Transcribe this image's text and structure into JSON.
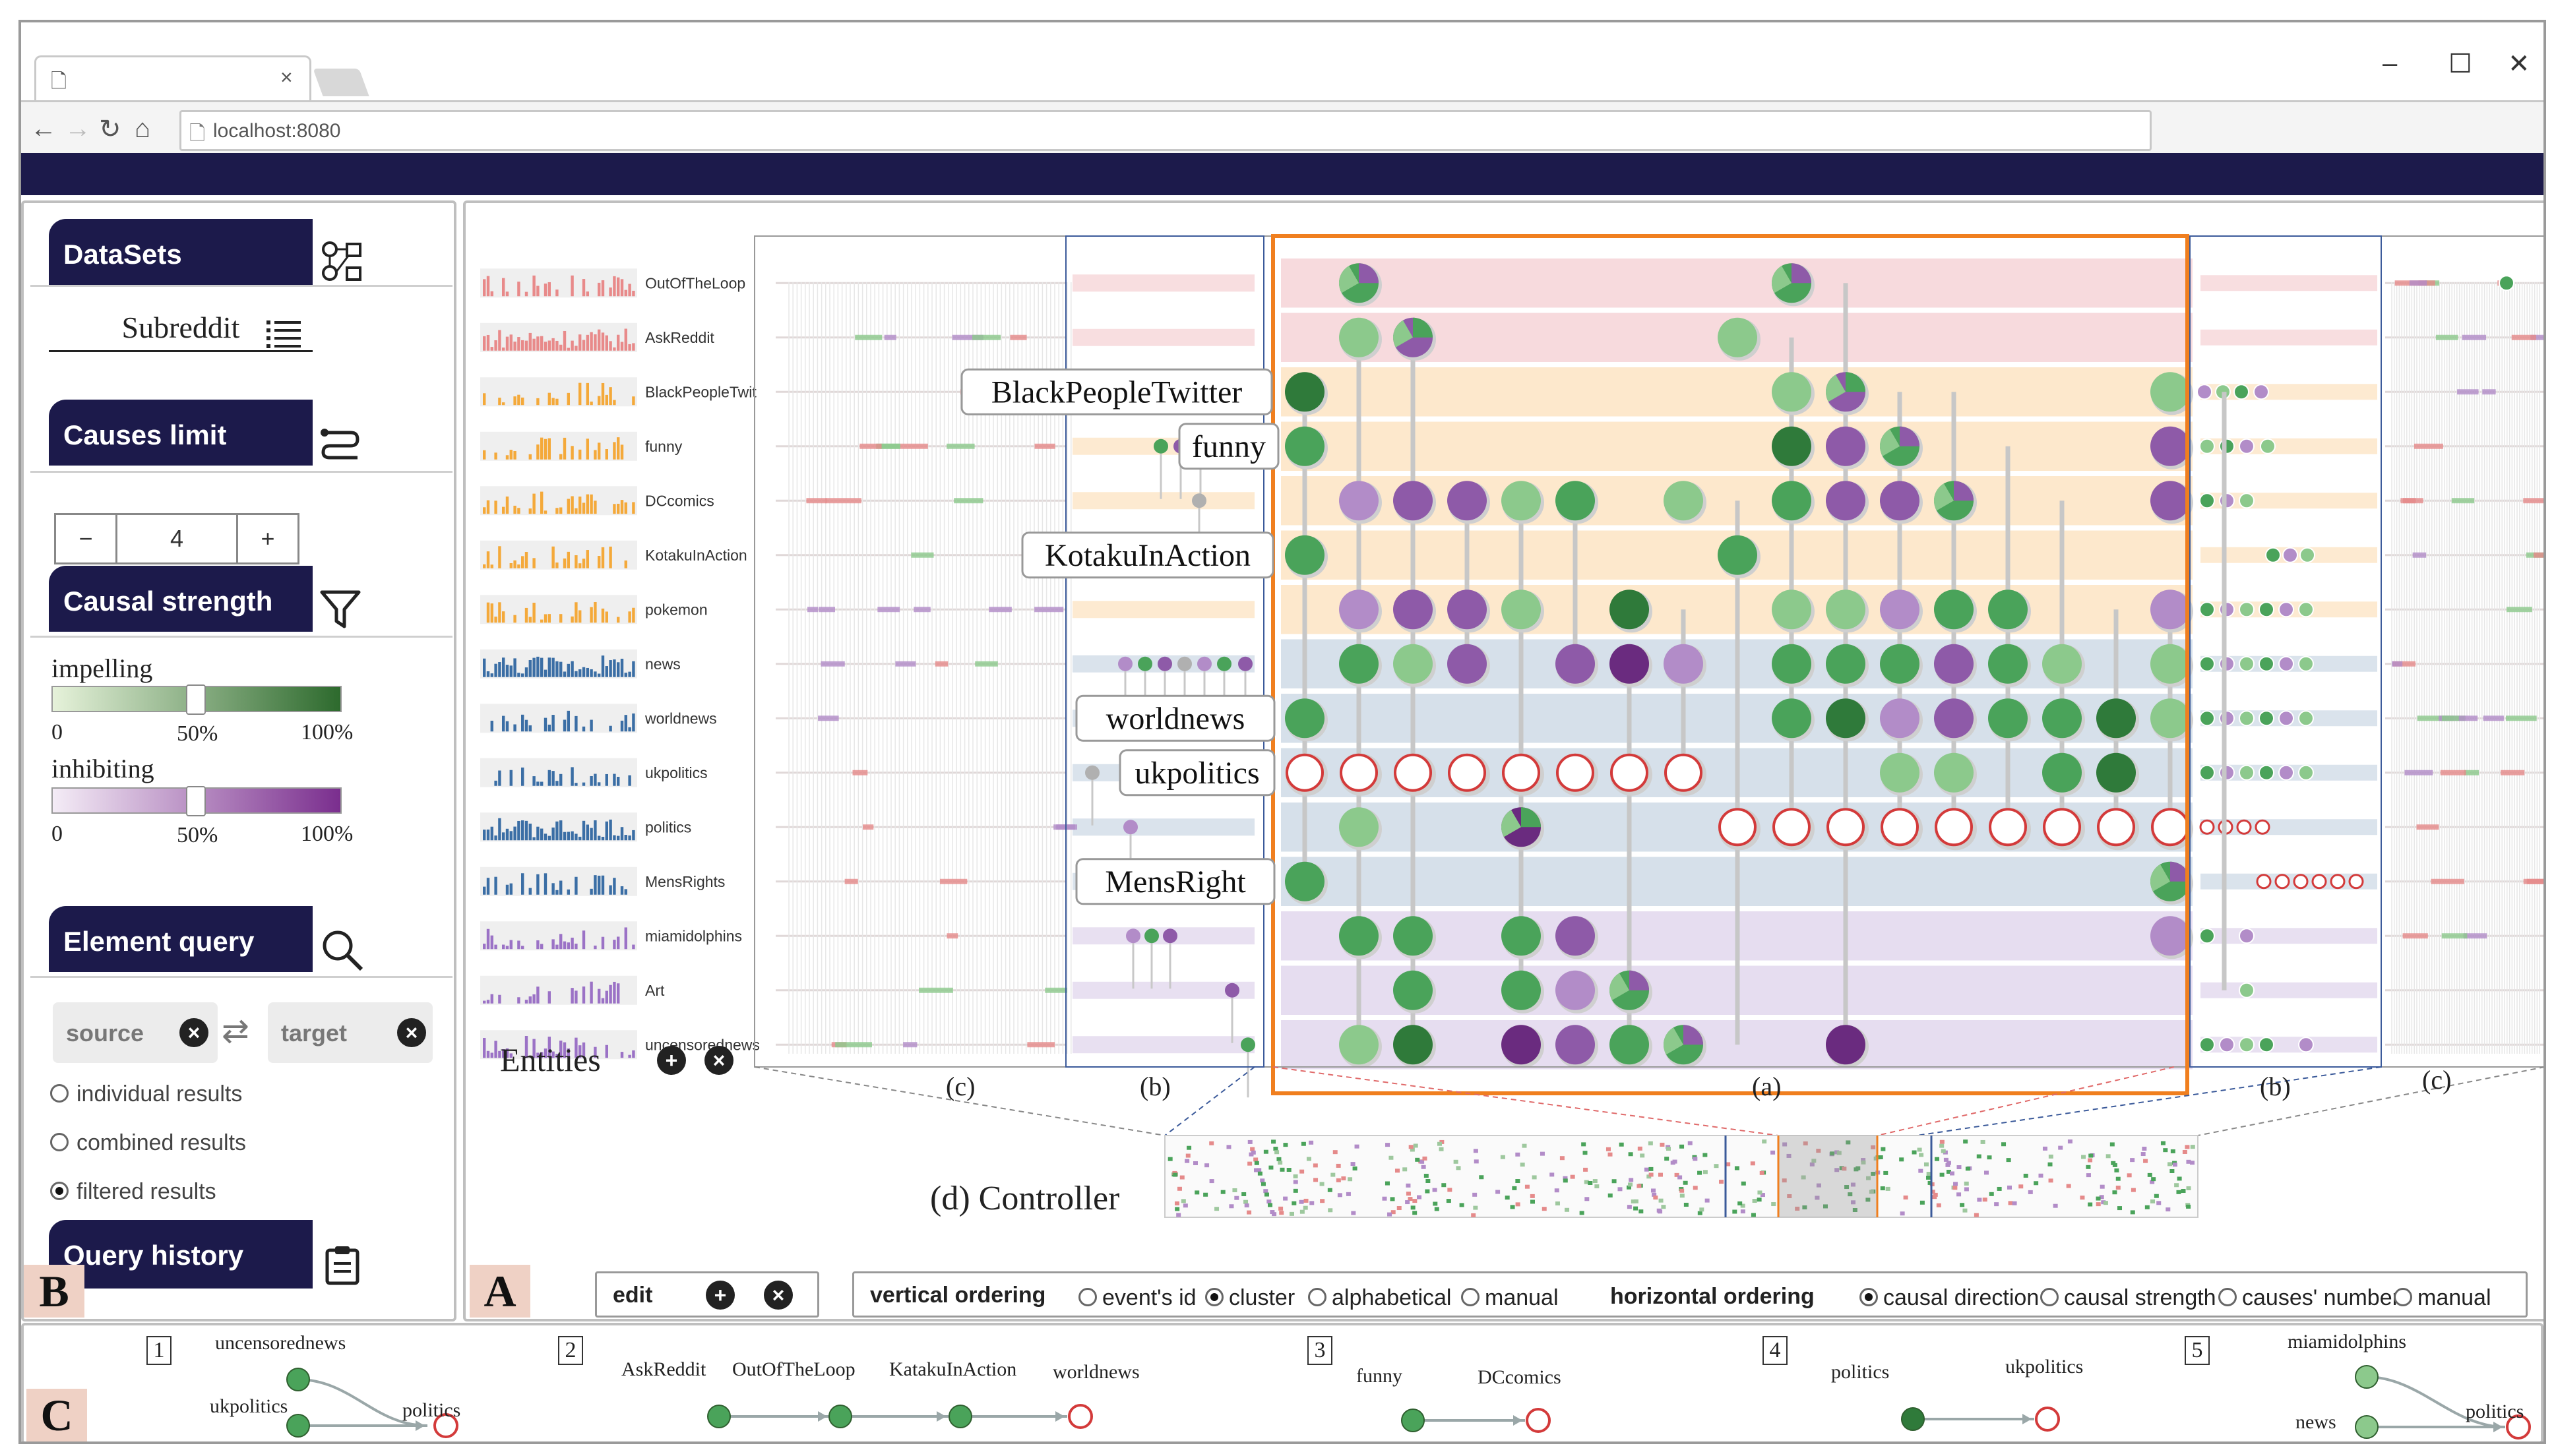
{
  "browser": {
    "url": "localhost:8080",
    "window_buttons": [
      "–",
      "☐",
      "✕"
    ],
    "nav_icons": [
      "←",
      "→",
      "↻",
      "⌂"
    ]
  },
  "panel_badges": {
    "left": "B",
    "main": "A",
    "bottom": "C"
  },
  "left_panel": {
    "datasets": {
      "title": "DataSets",
      "icon": "shapes-icon",
      "value": "Subreddit"
    },
    "causes_limit": {
      "title": "Causes limit",
      "icon": "route-icon",
      "minus": "−",
      "value": "4",
      "plus": "+"
    },
    "causal_strength": {
      "title": "Causal strength",
      "icon": "funnel-icon",
      "impelling_label": "impelling",
      "inhibiting_label": "inhibiting",
      "ticks": [
        "0",
        "50%",
        "100%"
      ],
      "impelling_threshold": 0.5,
      "inhibiting_threshold": 0.5,
      "colors": {
        "impel_start": "#e6f2da",
        "impel_end": "#2d6a2d",
        "inhib_start": "#f4ecf6",
        "inhib_end": "#7a2e8e"
      }
    },
    "element_query": {
      "title": "Element query",
      "icon": "search-icon",
      "source_placeholder": "source",
      "target_placeholder": "target",
      "options": [
        {
          "label": "individual results",
          "selected": false
        },
        {
          "label": "combined results",
          "selected": false
        },
        {
          "label": "filtered results",
          "selected": true
        }
      ]
    },
    "query_history": {
      "title": "Query history",
      "icon": "clipboard-icon"
    }
  },
  "main_panel": {
    "entities": [
      {
        "name": "OutOfTheLoop",
        "color": "#e88a8a"
      },
      {
        "name": "AskReddit",
        "color": "#e88a8a"
      },
      {
        "name": "BlackPeopleTwit",
        "color": "#f4a93a"
      },
      {
        "name": "funny",
        "color": "#f4a93a"
      },
      {
        "name": "DCcomics",
        "color": "#f4a93a"
      },
      {
        "name": "KotakuInAction",
        "color": "#f4a93a"
      },
      {
        "name": "pokemon",
        "color": "#f4a93a"
      },
      {
        "name": "news",
        "color": "#3b6ea5"
      },
      {
        "name": "worldnews",
        "color": "#3b6ea5"
      },
      {
        "name": "ukpolitics",
        "color": "#3b6ea5"
      },
      {
        "name": "politics",
        "color": "#3b6ea5"
      },
      {
        "name": "MensRights",
        "color": "#3b6ea5"
      },
      {
        "name": "miamidolphins",
        "color": "#9b72c6"
      },
      {
        "name": "Art",
        "color": "#9b72c6"
      },
      {
        "name": "uncensorednews",
        "color": "#9b72c6"
      }
    ],
    "entities_label": "Entities",
    "band_colors": [
      "#f7dadd",
      "#f7dadd",
      "#fde8cc",
      "#fde8cc",
      "#fde8cc",
      "#fde8cc",
      "#fde8cc",
      "#d6e0ea",
      "#d6e0ea",
      "#d6e0ea",
      "#d6e0ea",
      "#d6e0ea",
      "#e6ddf0",
      "#e6ddf0",
      "#e6ddf0"
    ],
    "callouts": [
      "BlackPeopleTwitter",
      "funny",
      "KotakuInAction",
      "worldnews",
      "ukpolitics",
      "MensRight"
    ],
    "region_labels": {
      "c_left": "(c)",
      "b_left": "(b)",
      "a": "(a)",
      "b_right": "(b)",
      "c_right": "(c)"
    },
    "controller_label": "(d) Controller",
    "toolbar": {
      "edit_label": "edit",
      "vertical_label": "vertical ordering",
      "vertical_options": [
        {
          "label": "event's id",
          "selected": false
        },
        {
          "label": "cluster",
          "selected": true
        },
        {
          "label": "alphabetical",
          "selected": false
        },
        {
          "label": "manual",
          "selected": false
        }
      ],
      "horizontal_label": "horizontal ordering",
      "horizontal_options": [
        {
          "label": "causal direction",
          "selected": true
        },
        {
          "label": "causal strength",
          "selected": false
        },
        {
          "label": "causes' number",
          "selected": false
        },
        {
          "label": "manual",
          "selected": false
        }
      ]
    }
  },
  "history": [
    {
      "num": "1",
      "labels": [
        "uncensorednews",
        "ukpolitics",
        "politics"
      ]
    },
    {
      "num": "2",
      "labels": [
        "AskReddit",
        "OutOfTheLoop",
        "KatakuInAction",
        "worldnews"
      ]
    },
    {
      "num": "3",
      "labels": [
        "funny",
        "DCcomics"
      ]
    },
    {
      "num": "4",
      "labels": [
        "politics",
        "ukpolitics"
      ]
    },
    {
      "num": "5",
      "labels": [
        "miamidolphins",
        "news",
        "politics"
      ]
    }
  ],
  "colors": {
    "impel": "#4aa35a",
    "impel_dark": "#2f7a3a",
    "impel_light": "#8cc98c",
    "inhib": "#8e5aa8",
    "inhib_dark": "#6a2b7f",
    "inhib_light": "#b28cc8",
    "target": "#d33a3a",
    "brand": "#1c1a4b",
    "focus": "#f07f1f"
  }
}
